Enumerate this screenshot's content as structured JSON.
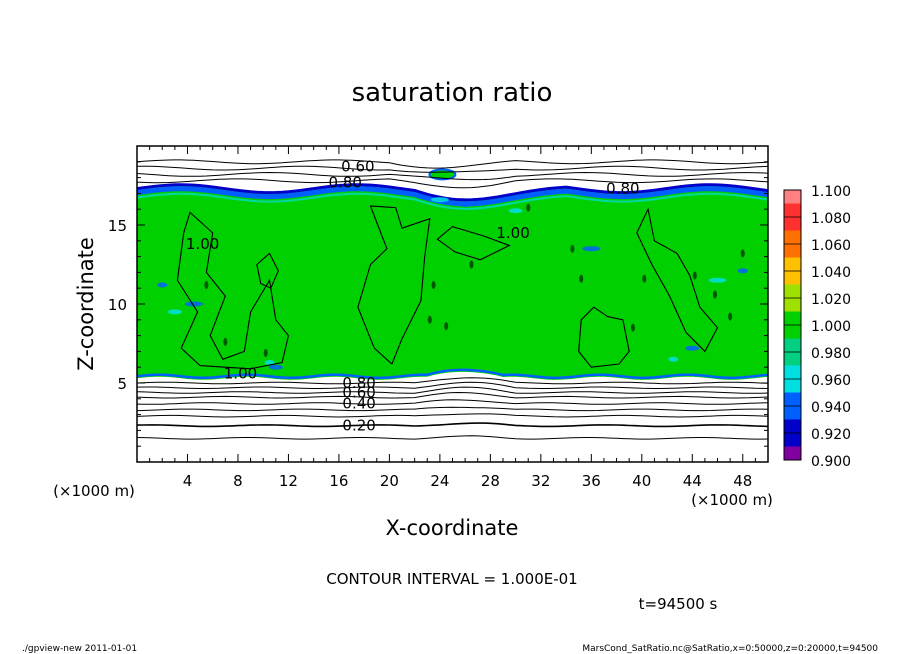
{
  "chart_data": {
    "type": "heatmap",
    "title": "saturation ratio",
    "xlabel": "X-coordinate",
    "ylabel": "Z-coordinate",
    "x_unit": "(×1000 m)",
    "z_unit": "(×1000 m)",
    "xlim": [
      0,
      50
    ],
    "ylim": [
      0,
      20
    ],
    "x_ticks": [
      "4",
      "8",
      "12",
      "16",
      "20",
      "24",
      "28",
      "32",
      "36",
      "40",
      "44",
      "48"
    ],
    "y_ticks": [
      "5",
      "10",
      "15"
    ],
    "contour_labels": [
      {
        "text": "0.60",
        "x": 17.5,
        "y": 18.7
      },
      {
        "text": "0.80",
        "x": 16.5,
        "y": 17.7
      },
      {
        "text": "0.80",
        "x": 38.5,
        "y": 17.3
      },
      {
        "text": "1.00",
        "x": 5.2,
        "y": 13.8
      },
      {
        "text": "1.00",
        "x": 29.8,
        "y": 14.5
      },
      {
        "text": "1.00",
        "x": 8.2,
        "y": 5.6
      },
      {
        "text": "0.80",
        "x": 17.6,
        "y": 5.0
      },
      {
        "text": "0.60",
        "x": 17.6,
        "y": 4.4
      },
      {
        "text": "0.40",
        "x": 17.6,
        "y": 3.7
      },
      {
        "text": "0.20",
        "x": 17.6,
        "y": 2.3
      }
    ],
    "colorbar": {
      "levels": [
        "1.100",
        "1.080",
        "1.060",
        "1.040",
        "1.020",
        "1.000",
        "0.980",
        "0.960",
        "0.940",
        "0.920",
        "0.900"
      ],
      "colors": [
        "#ff8080",
        "#ff3030",
        "#ff7000",
        "#ffc000",
        "#a0e000",
        "#00d000",
        "#00d080",
        "#00e0e0",
        "#0060ff",
        "#0000c8",
        "#8000a0"
      ]
    },
    "field_summary": {
      "saturated_layer_z": [
        5.3,
        17.3
      ],
      "saturated_value": 1.0,
      "below_layer_contours": [
        0.2,
        0.4,
        0.6,
        0.8
      ],
      "above_layer_contours": [
        0.6,
        0.8
      ]
    }
  },
  "contour_interval_text": "CONTOUR INTERVAL = 1.000E-01",
  "time_text": "t=94500 s",
  "footer_left": "./gpview-new   2011-01-01",
  "footer_right": "MarsCond_SatRatio.nc@SatRatio,x=0:50000,z=0:20000,t=94500",
  "colors": {
    "saturated": "#00d000",
    "edge_blue": "#0060ff",
    "deep_blue": "#0000c8",
    "cyan": "#00e0e0"
  }
}
